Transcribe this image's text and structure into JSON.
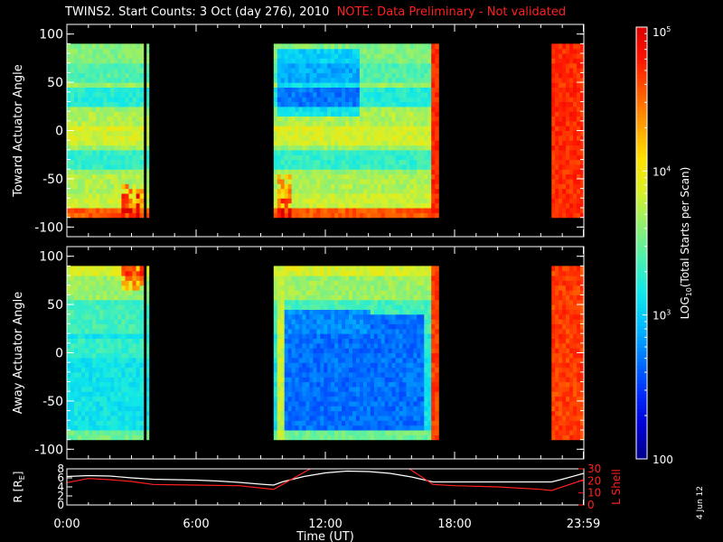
{
  "title": {
    "main": "TWINS2. Start Counts:  3 Oct (day 276), 2010",
    "note": "NOTE: Data Preliminary - Not validated"
  },
  "date_stamp": "4 Jun 12",
  "colors": {
    "background": "#000000",
    "axes": "#ffffff",
    "note": "#ff2020",
    "r_line": "#ffffff",
    "lshell_line": "#ff2020"
  },
  "chart_data": [
    {
      "type": "heatmap",
      "name": "toward",
      "ylabel": "Toward Actuator Angle",
      "xlim": [
        0,
        24
      ],
      "ylim": [
        -110,
        110
      ],
      "yticks": [
        -100,
        -50,
        0,
        50,
        100
      ],
      "data_angle_range": [
        -90,
        90
      ],
      "coverage_hours": [
        [
          0,
          3.55
        ],
        [
          3.7,
          3.8
        ],
        [
          9.6,
          17.25
        ],
        [
          22.5,
          24
        ]
      ],
      "color_scale": "log"
    },
    {
      "type": "heatmap",
      "name": "away",
      "ylabel": "Away Actuator Angle",
      "xlim": [
        0,
        24
      ],
      "ylim": [
        -110,
        110
      ],
      "yticks": [
        -100,
        -50,
        0,
        50,
        100
      ],
      "data_angle_range": [
        -90,
        90
      ],
      "coverage_hours": [
        [
          0,
          3.55
        ],
        [
          3.7,
          3.8
        ],
        [
          9.6,
          17.25
        ],
        [
          22.5,
          24
        ]
      ],
      "color_scale": "log"
    },
    {
      "type": "line",
      "name": "orbit",
      "ylabel": "R [R",
      "ylabel_sub": "E",
      "ylabel_close": "]",
      "y2label": "L Shell",
      "xlabel": "Time (UT)",
      "xlim": [
        0,
        24
      ],
      "ylim": [
        0,
        8
      ],
      "yticks": [
        0,
        2,
        4,
        6,
        8
      ],
      "y2lim": [
        0,
        30
      ],
      "y2ticks": [
        0,
        10,
        20,
        30
      ],
      "xtick_labels": [
        "0:00",
        "6:00",
        "12:00",
        "18:00",
        "23:59"
      ],
      "xtick_hours": [
        0,
        6,
        12,
        18,
        23.98
      ],
      "series": [
        {
          "axis": "left",
          "x": [
            0,
            1,
            2,
            3,
            4,
            5,
            6,
            7,
            8,
            9,
            9.6,
            10,
            11,
            12,
            13,
            14,
            15,
            16,
            17,
            18,
            19,
            20,
            21,
            22,
            22.5,
            23,
            24
          ],
          "y": [
            6.3,
            6.5,
            6.4,
            6.0,
            5.7,
            5.6,
            5.5,
            5.3,
            5.0,
            4.6,
            4.4,
            5.1,
            6.3,
            7.1,
            7.5,
            7.4,
            7.0,
            6.2,
            5.1,
            5.1,
            5.1,
            5.1,
            5.1,
            5.1,
            5.1,
            5.7,
            7.0
          ]
        },
        {
          "axis": "right",
          "segments": [
            {
              "x": [
                0,
                1,
                2,
                3,
                4,
                6,
                8,
                9.6,
                11.3
              ],
              "y": [
                18.5,
                22,
                21,
                19.5,
                17,
                16.5,
                16,
                13,
                31
              ]
            },
            {
              "x": [
                15.9,
                17,
                18,
                20,
                22,
                22.5,
                24
              ],
              "y": [
                31,
                17,
                16,
                15,
                13,
                12,
                21
              ]
            }
          ]
        }
      ]
    }
  ],
  "colorbar": {
    "label_pre": "LOG",
    "label_sub": "10",
    "label_post": "(Total Starts per Scan)",
    "range": [
      100,
      100000
    ],
    "ticks": [
      {
        "value": 100000,
        "base": "10",
        "exp": "5"
      },
      {
        "value": 10000,
        "base": "10",
        "exp": "4"
      },
      {
        "value": 1000,
        "base": "10",
        "exp": "3"
      },
      {
        "value": 100,
        "base": "100",
        "exp": ""
      }
    ],
    "colormap": [
      "#00008c",
      "#0000d8",
      "#0030ff",
      "#0078ff",
      "#00beff",
      "#10e8e8",
      "#4cf0b0",
      "#90f070",
      "#d8f028",
      "#ffe000",
      "#ffa000",
      "#ff5a00",
      "#ff1400",
      "#d80000"
    ]
  }
}
